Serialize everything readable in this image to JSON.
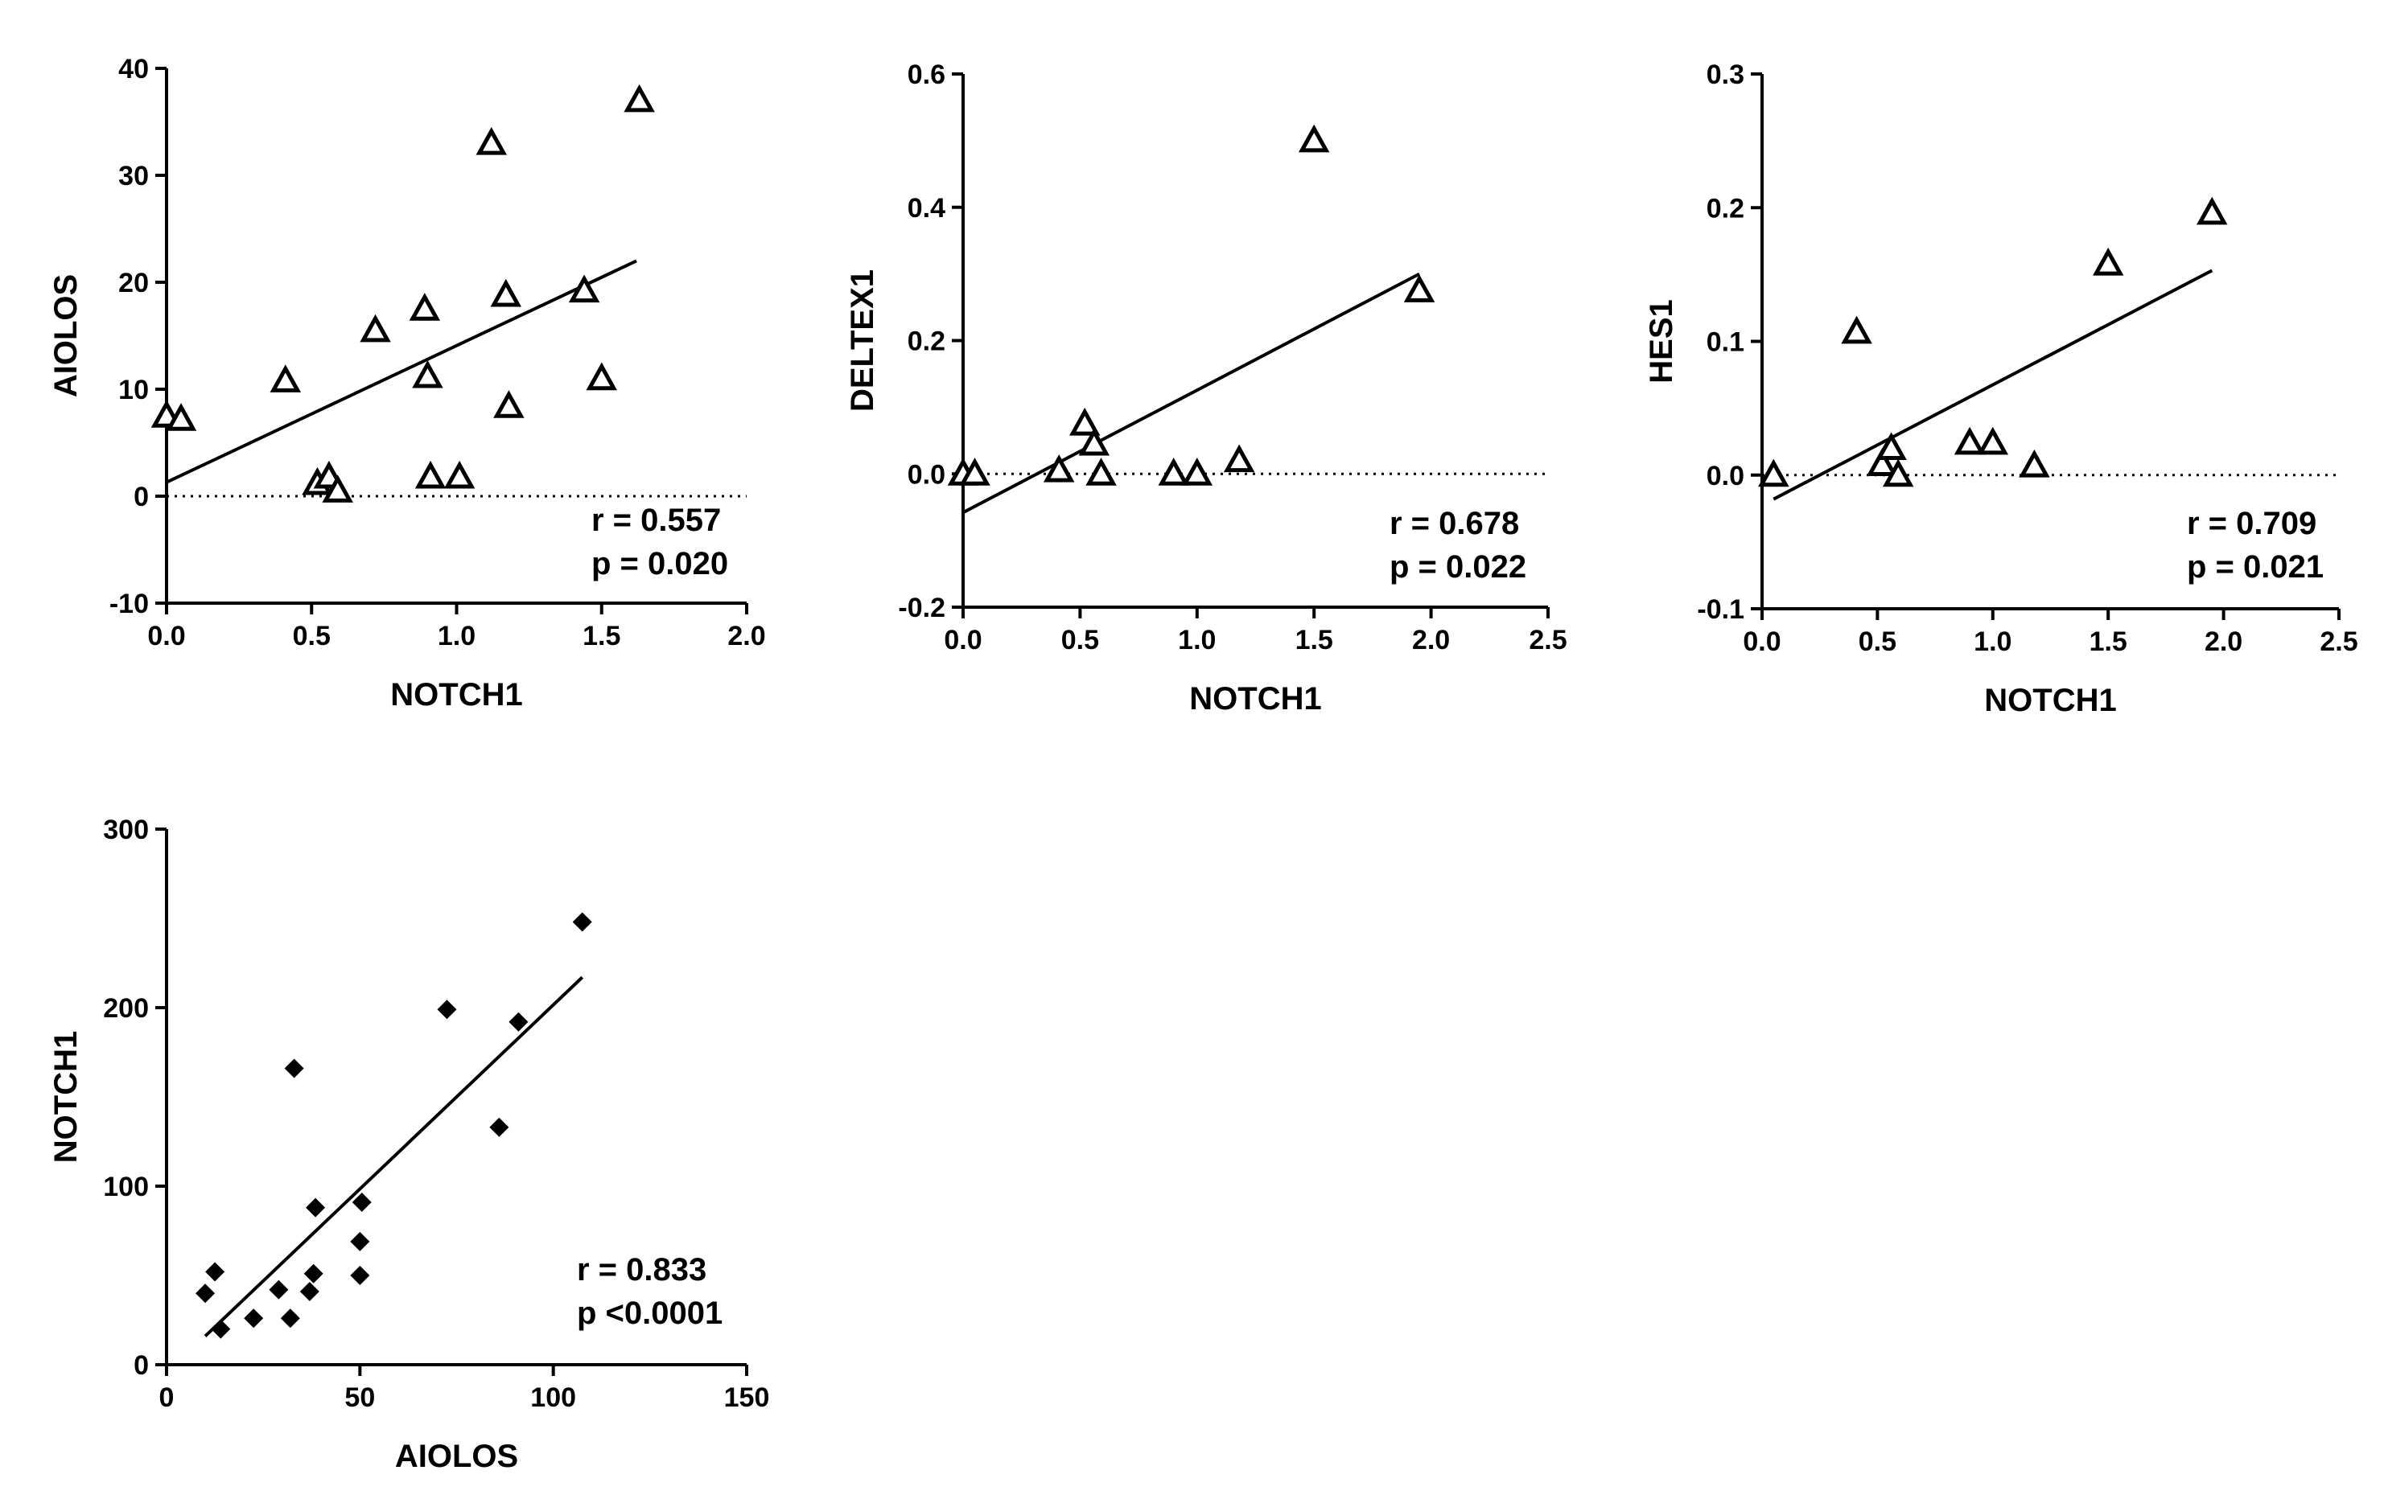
{
  "chart_data": [
    {
      "type": "scatter",
      "name": "aiolos-vs-notch1",
      "title": "",
      "xlabel": "NOTCH1",
      "ylabel": "AIOLOS",
      "xlim": [
        0,
        2.0
      ],
      "ylim": [
        -10,
        40
      ],
      "xticks": [
        0,
        0.5,
        1.0,
        1.5,
        2.0
      ],
      "xtick_labels": [
        "0.0",
        "0.5",
        "1.0",
        "1.5",
        "2.0"
      ],
      "yticks": [
        -10,
        0,
        10,
        20,
        30,
        40
      ],
      "ytick_labels": [
        "-10",
        "0",
        "10",
        "20",
        "30",
        "40"
      ],
      "marker": "triangle-open",
      "zero_line": true,
      "x": [
        0.0,
        0.05,
        0.41,
        0.52,
        0.56,
        0.59,
        0.72,
        0.89,
        0.9,
        0.91,
        1.01,
        1.12,
        1.17,
        1.18,
        1.44,
        1.5,
        1.63
      ],
      "y": [
        7.5,
        7.2,
        10.8,
        1.2,
        1.8,
        0.5,
        15.5,
        17.5,
        11.2,
        1.8,
        1.8,
        33.0,
        18.8,
        8.4,
        19.2,
        11.0,
        37.0
      ],
      "fit": {
        "x": [
          0,
          1.62
        ],
        "y": [
          1.3,
          22.0
        ]
      },
      "stats": [
        "r = 0.557",
        "p = 0.020"
      ]
    },
    {
      "type": "scatter",
      "name": "deltex1-vs-notch1",
      "title": "",
      "xlabel": "NOTCH1",
      "ylabel": "DELTEX1",
      "xlim": [
        0,
        2.5
      ],
      "ylim": [
        -0.2,
        0.6
      ],
      "xticks": [
        0,
        0.5,
        1.0,
        1.5,
        2.0,
        2.5
      ],
      "xtick_labels": [
        "0.0",
        "0.5",
        "1.0",
        "1.5",
        "2.0",
        "2.5"
      ],
      "yticks": [
        -0.2,
        0.0,
        0.2,
        0.4,
        0.6
      ],
      "ytick_labels": [
        "-0.2",
        "0.0",
        "0.2",
        "0.4",
        "0.6"
      ],
      "marker": "triangle-open",
      "zero_line": true,
      "x": [
        0.0,
        0.05,
        0.41,
        0.52,
        0.56,
        0.59,
        0.9,
        1.0,
        1.18,
        1.5,
        1.95
      ],
      "y": [
        0.0,
        0.0,
        0.005,
        0.075,
        0.045,
        0.0,
        0.0,
        0.0,
        0.02,
        0.5,
        0.275
      ],
      "fit": {
        "x": [
          0,
          1.95
        ],
        "y": [
          -0.058,
          0.3
        ]
      },
      "stats": [
        "r = 0.678",
        "p = 0.022"
      ]
    },
    {
      "type": "scatter",
      "name": "hes1-vs-notch1",
      "title": "",
      "xlabel": "NOTCH1",
      "ylabel": "HES1",
      "xlim": [
        0,
        2.5
      ],
      "ylim": [
        -0.1,
        0.3
      ],
      "xticks": [
        0,
        0.5,
        1.0,
        1.5,
        2.0,
        2.5
      ],
      "xtick_labels": [
        "0.0",
        "0.5",
        "1.0",
        "1.5",
        "2.0",
        "2.5"
      ],
      "yticks": [
        -0.1,
        0.0,
        0.1,
        0.2,
        0.3
      ],
      "ytick_labels": [
        "-0.1",
        "0.0",
        "0.1",
        "0.2",
        "0.3"
      ],
      "marker": "triangle-open",
      "zero_line": true,
      "x": [
        0.05,
        0.41,
        0.52,
        0.56,
        0.59,
        0.9,
        1.0,
        1.18,
        1.5,
        1.95
      ],
      "y": [
        0.0,
        0.107,
        0.008,
        0.02,
        0.0,
        0.024,
        0.024,
        0.007,
        0.158,
        0.196
      ],
      "fit": {
        "x": [
          0.05,
          1.95
        ],
        "y": [
          -0.018,
          0.153
        ]
      },
      "stats": [
        "r = 0.709",
        "p = 0.021"
      ]
    },
    {
      "type": "scatter",
      "name": "notch1-vs-aiolos",
      "title": "",
      "xlabel": "AIOLOS",
      "ylabel": "NOTCH1",
      "xlim": [
        0,
        150
      ],
      "ylim": [
        0,
        300
      ],
      "xticks": [
        0,
        50,
        100,
        150
      ],
      "xtick_labels": [
        "0",
        "50",
        "100",
        "150"
      ],
      "yticks": [
        0,
        100,
        200,
        300
      ],
      "ytick_labels": [
        "0",
        "100",
        "200",
        "300"
      ],
      "marker": "diamond-filled",
      "zero_line": false,
      "x": [
        10,
        12.5,
        14,
        22.5,
        29,
        32,
        33,
        37,
        38,
        38.5,
        50,
        50,
        50.5,
        72.5,
        86,
        91,
        107.5
      ],
      "y": [
        40,
        52,
        20,
        26,
        42,
        26,
        166,
        41,
        51,
        88,
        50,
        69,
        91,
        199,
        133,
        192,
        248
      ],
      "fit": {
        "x": [
          10,
          107.5
        ],
        "y": [
          16,
          217
        ]
      },
      "stats": [
        "r = 0.833",
        "p <0.0001"
      ]
    }
  ]
}
